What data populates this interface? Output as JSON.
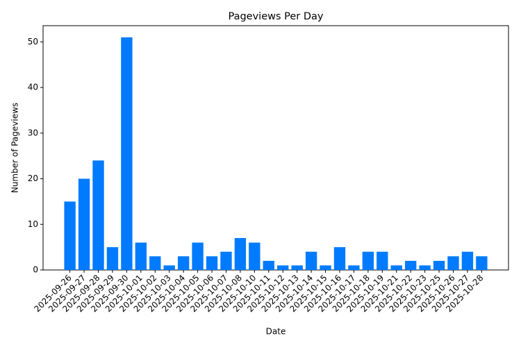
{
  "chart_data": {
    "type": "bar",
    "title": "Pageviews Per Day",
    "x_label": "Date",
    "y_label": "Number of Pageviews",
    "categories": [
      "2025-09-26",
      "2025-09-27",
      "2025-09-28",
      "2025-09-29",
      "2025-09-30",
      "2025-10-01",
      "2025-10-02",
      "2025-10-03",
      "2025-10-04",
      "2025-10-05",
      "2025-10-06",
      "2025-10-07",
      "2025-10-08",
      "2025-10-10",
      "2025-10-11",
      "2025-10-12",
      "2025-10-13",
      "2025-10-14",
      "2025-10-15",
      "2025-10-16",
      "2025-10-17",
      "2025-10-18",
      "2025-10-19",
      "2025-10-21",
      "2025-10-22",
      "2025-10-23",
      "2025-10-25",
      "2025-10-26",
      "2025-10-27",
      "2025-10-28"
    ],
    "values": [
      15,
      20,
      24,
      5,
      51,
      6,
      3,
      1,
      3,
      6,
      3,
      4,
      7,
      6,
      2,
      1,
      1,
      4,
      1,
      5,
      1,
      4,
      4,
      1,
      2,
      1,
      2,
      3,
      4,
      3
    ],
    "color": "#007bff",
    "ylim": [
      0,
      53.55
    ],
    "yticks": [
      0,
      10,
      20,
      30,
      40,
      50
    ],
    "grid": false
  }
}
